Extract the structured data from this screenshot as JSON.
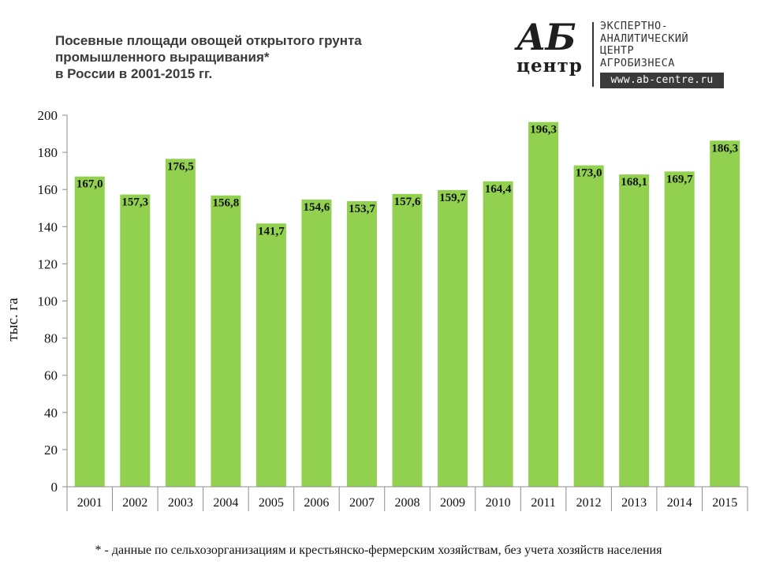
{
  "title": {
    "line1": "Посевные площади овощей открытого грунта",
    "line2": "промышленного выращивания*",
    "line3": "в России в 2001-2015 гг."
  },
  "logo": {
    "ab": "АБ",
    "centr": "центр",
    "line1": "ЭКСПЕРТНО-",
    "line2": "АНАЛИТИЧЕСКИЙ",
    "line3": "ЦЕНТР",
    "line4": "АГРОБИЗНЕСА",
    "url": "www.ab-centre.ru"
  },
  "colors": {
    "bar": "#92d050",
    "axis": "#8c8c8c",
    "text": "#111111"
  },
  "chart_data": {
    "type": "bar",
    "categories": [
      "2001",
      "2002",
      "2003",
      "2004",
      "2005",
      "2006",
      "2007",
      "2008",
      "2009",
      "2010",
      "2011",
      "2012",
      "2013",
      "2014",
      "2015"
    ],
    "values": [
      167.0,
      157.3,
      176.5,
      156.8,
      141.7,
      154.6,
      153.7,
      157.6,
      159.7,
      164.4,
      196.3,
      173.0,
      168.1,
      169.7,
      186.3
    ],
    "labels": [
      "167,0",
      "157,3",
      "176,5",
      "156,8",
      "141,7",
      "154,6",
      "153,7",
      "157,6",
      "159,7",
      "164,4",
      "196,3",
      "173,0",
      "168,1",
      "169,7",
      "186,3"
    ],
    "ylabel": "тыс. га",
    "xlabel": "",
    "ylim": [
      0,
      200
    ],
    "yticks": [
      0,
      20,
      40,
      60,
      80,
      100,
      120,
      140,
      160,
      180,
      200
    ],
    "grid": false,
    "legend": "none"
  },
  "footnote": "* - данные по сельхозорганизациям и крестьянско-фермерским хозяйствам, без учета хозяйств населения"
}
